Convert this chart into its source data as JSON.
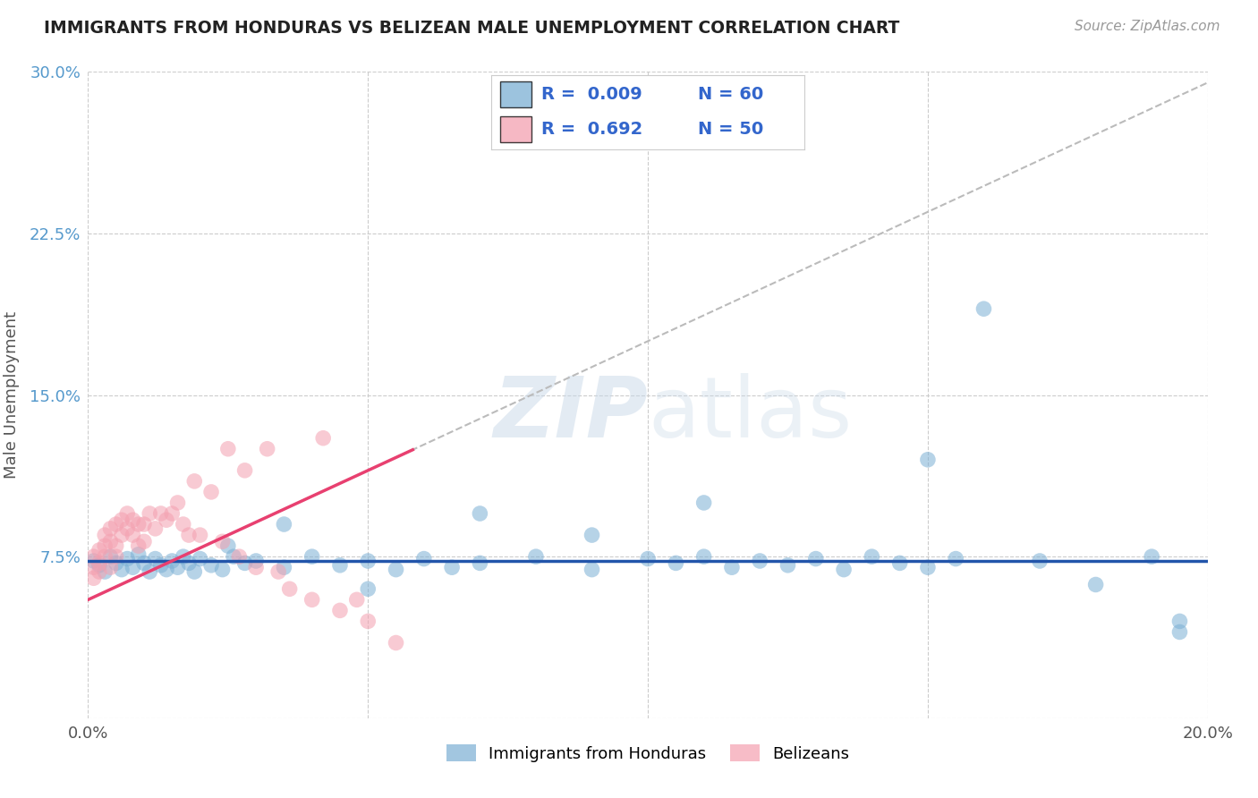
{
  "title": "IMMIGRANTS FROM HONDURAS VS BELIZEAN MALE UNEMPLOYMENT CORRELATION CHART",
  "source": "Source: ZipAtlas.com",
  "ylabel": "Male Unemployment",
  "legend_label_1": "Immigrants from Honduras",
  "legend_label_2": "Belizeans",
  "R1": 0.009,
  "N1": 60,
  "R2": 0.692,
  "N2": 50,
  "xlim": [
    0.0,
    0.2
  ],
  "ylim": [
    0.0,
    0.3
  ],
  "color_blue": "#7BAFD4",
  "color_pink": "#F4A0B0",
  "trendline_blue": "#2255AA",
  "trendline_pink": "#E84070",
  "trendline_dashed": "#BBBBBB",
  "watermark_color": "#C8D8E8",
  "background_color": "#FFFFFF",
  "blue_x": [
    0.001,
    0.002,
    0.003,
    0.004,
    0.005,
    0.006,
    0.007,
    0.008,
    0.009,
    0.01,
    0.011,
    0.012,
    0.013,
    0.014,
    0.015,
    0.016,
    0.017,
    0.018,
    0.019,
    0.02,
    0.022,
    0.024,
    0.026,
    0.028,
    0.03,
    0.035,
    0.04,
    0.045,
    0.05,
    0.055,
    0.06,
    0.065,
    0.07,
    0.08,
    0.09,
    0.1,
    0.105,
    0.11,
    0.115,
    0.12,
    0.125,
    0.13,
    0.135,
    0.14,
    0.145,
    0.15,
    0.155,
    0.16,
    0.17,
    0.18,
    0.19,
    0.195,
    0.025,
    0.035,
    0.05,
    0.07,
    0.09,
    0.11,
    0.15,
    0.195
  ],
  "blue_y": [
    0.073,
    0.071,
    0.068,
    0.075,
    0.072,
    0.069,
    0.074,
    0.07,
    0.076,
    0.072,
    0.068,
    0.074,
    0.071,
    0.069,
    0.073,
    0.07,
    0.075,
    0.072,
    0.068,
    0.074,
    0.071,
    0.069,
    0.075,
    0.072,
    0.073,
    0.07,
    0.075,
    0.071,
    0.073,
    0.069,
    0.074,
    0.07,
    0.072,
    0.075,
    0.069,
    0.074,
    0.072,
    0.075,
    0.07,
    0.073,
    0.071,
    0.074,
    0.069,
    0.075,
    0.072,
    0.07,
    0.074,
    0.19,
    0.073,
    0.062,
    0.075,
    0.045,
    0.08,
    0.09,
    0.06,
    0.095,
    0.085,
    0.1,
    0.12,
    0.04
  ],
  "pink_x": [
    0.001,
    0.001,
    0.001,
    0.002,
    0.002,
    0.002,
    0.003,
    0.003,
    0.003,
    0.004,
    0.004,
    0.004,
    0.005,
    0.005,
    0.005,
    0.006,
    0.006,
    0.007,
    0.007,
    0.008,
    0.008,
    0.009,
    0.009,
    0.01,
    0.01,
    0.011,
    0.012,
    0.013,
    0.014,
    0.015,
    0.016,
    0.017,
    0.018,
    0.019,
    0.02,
    0.022,
    0.024,
    0.025,
    0.027,
    0.028,
    0.03,
    0.032,
    0.034,
    0.036,
    0.04,
    0.042,
    0.045,
    0.048,
    0.05,
    0.055
  ],
  "pink_y": [
    0.065,
    0.07,
    0.075,
    0.068,
    0.072,
    0.078,
    0.075,
    0.08,
    0.085,
    0.07,
    0.082,
    0.088,
    0.075,
    0.08,
    0.09,
    0.085,
    0.092,
    0.088,
    0.095,
    0.085,
    0.092,
    0.08,
    0.09,
    0.082,
    0.09,
    0.095,
    0.088,
    0.095,
    0.092,
    0.095,
    0.1,
    0.09,
    0.085,
    0.11,
    0.085,
    0.105,
    0.082,
    0.125,
    0.075,
    0.115,
    0.07,
    0.125,
    0.068,
    0.06,
    0.055,
    0.13,
    0.05,
    0.055,
    0.045,
    0.035
  ],
  "pink_trend_x0": 0.0,
  "pink_trend_y0": 0.055,
  "pink_trend_x1": 0.2,
  "pink_trend_y1": 0.295,
  "blue_trend_y": 0.073
}
